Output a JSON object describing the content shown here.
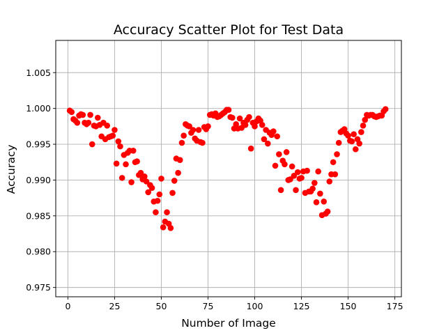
{
  "chart_data": {
    "type": "scatter",
    "title": "Accuracy Scatter Plot for Test Data",
    "xlabel": "Number of Image",
    "ylabel": "Accuracy",
    "xlim": [
      -6.5,
      178.5
    ],
    "ylim": [
      0.9737,
      1.0095
    ],
    "xticks": [
      0,
      25,
      50,
      75,
      100,
      125,
      150,
      175
    ],
    "xtick_labels": [
      "0",
      "25",
      "50",
      "75",
      "100",
      "125",
      "150",
      "175"
    ],
    "yticks": [
      0.975,
      0.98,
      0.985,
      0.99,
      0.995,
      1.0,
      1.005
    ],
    "ytick_labels": [
      "0.975",
      "0.980",
      "0.985",
      "0.990",
      "0.995",
      "1.000",
      "1.005"
    ],
    "grid": true,
    "marker_color": "#ff0000",
    "series": [
      {
        "x": [
          1,
          2,
          3,
          4,
          5,
          6,
          7,
          8,
          9,
          10,
          11,
          12,
          13,
          14,
          15,
          16,
          17,
          18,
          19,
          20,
          21,
          22,
          23,
          24,
          25,
          26,
          27,
          28,
          29,
          30,
          31,
          32,
          33,
          34,
          35,
          36,
          37,
          38,
          39,
          40,
          41,
          42,
          43,
          44,
          45,
          46,
          47,
          48,
          49,
          50,
          51,
          52,
          53,
          54,
          55,
          56,
          57,
          58,
          59,
          60,
          61,
          62,
          63,
          64,
          65,
          66,
          67,
          68,
          69,
          70,
          71,
          72,
          73,
          74,
          75,
          76,
          77,
          78,
          79,
          80,
          81,
          82,
          83,
          84,
          85,
          86,
          87,
          88,
          89,
          90,
          91,
          92,
          93,
          94,
          95,
          96,
          97,
          98,
          99,
          100,
          101,
          102,
          103,
          104,
          105,
          106,
          107,
          108,
          109,
          110,
          111,
          112,
          113,
          114,
          115,
          116,
          117,
          118,
          119,
          120,
          121,
          122,
          123,
          124,
          125,
          126,
          127,
          128,
          129,
          130,
          131,
          132,
          133,
          134,
          135,
          136,
          137,
          138,
          139,
          140,
          141,
          142,
          143,
          144,
          145,
          146,
          147,
          148,
          149,
          150,
          151,
          152,
          153,
          154,
          155,
          156,
          157,
          158,
          159,
          160,
          161,
          162,
          163,
          164,
          165,
          166,
          167,
          168,
          169,
          170
        ],
        "y": [
          0.9997,
          0.9995,
          0.9985,
          0.9983,
          0.998,
          0.999,
          0.9992,
          0.9991,
          0.998,
          0.9978,
          0.998,
          0.9991,
          0.995,
          0.9976,
          0.9975,
          0.9987,
          0.9977,
          0.9961,
          0.998,
          0.9957,
          0.9976,
          0.996,
          0.9961,
          0.9962,
          0.997,
          0.9923,
          0.9954,
          0.9947,
          0.9903,
          0.9935,
          0.9922,
          0.9938,
          0.9941,
          0.9897,
          0.9941,
          0.9925,
          0.9926,
          0.9907,
          0.991,
          0.9901,
          0.9905,
          0.9898,
          0.9883,
          0.9893,
          0.9889,
          0.987,
          0.9855,
          0.9871,
          0.988,
          0.9902,
          0.9834,
          0.9842,
          0.9855,
          0.9839,
          0.9833,
          0.9882,
          0.9899,
          0.993,
          0.991,
          0.9928,
          0.9952,
          0.9962,
          0.9978,
          0.9976,
          0.9975,
          0.9966,
          0.997,
          0.9958,
          0.9955,
          0.997,
          0.9953,
          0.9952,
          0.9974,
          0.9971,
          0.9975,
          0.9991,
          0.9992,
          0.999,
          0.9993,
          0.9988,
          0.9989,
          0.9991,
          0.9993,
          0.9995,
          0.9998,
          0.9998,
          0.9988,
          0.9987,
          0.9972,
          0.9978,
          0.9972,
          0.9986,
          0.9973,
          0.998,
          0.9977,
          0.9984,
          0.9988,
          0.9944,
          0.998,
          0.9975,
          0.9982,
          0.9986,
          0.9983,
          0.9977,
          0.9957,
          0.997,
          0.9951,
          0.9966,
          0.9963,
          0.9968,
          0.992,
          0.9961,
          0.9936,
          0.9886,
          0.9927,
          0.9922,
          0.9939,
          0.99,
          0.9901,
          0.9919,
          0.9906,
          0.9886,
          0.9911,
          0.9902,
          0.9903,
          0.9912,
          0.9882,
          0.9913,
          0.9884,
          0.9884,
          0.9888,
          0.9896,
          0.9869,
          0.9912,
          0.9881,
          0.9851,
          0.987,
          0.9853,
          0.9856,
          0.9898,
          0.9908,
          0.9925,
          0.9908,
          0.9936,
          0.9952,
          0.9967,
          0.9969,
          0.9971,
          0.9965,
          0.9962,
          0.9955,
          0.9954,
          0.9964,
          0.9943,
          0.9957,
          0.9951,
          0.9967,
          0.9976,
          0.9984,
          0.9991,
          0.999,
          0.9991,
          0.9991,
          0.9989,
          0.9988,
          0.9989,
          0.999,
          0.999,
          0.9996,
          0.9999
        ]
      }
    ]
  }
}
